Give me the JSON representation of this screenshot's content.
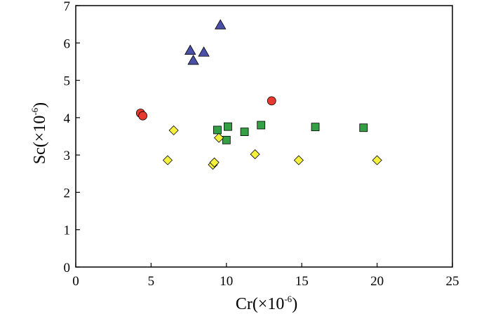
{
  "chart_data": {
    "type": "scatter",
    "title": "",
    "xlabel": {
      "base": "Cr(×10",
      "exp": "-6",
      "close": ")"
    },
    "ylabel": {
      "base": "Sc(×10",
      "exp": "-6",
      "close": ")"
    },
    "xlim": [
      0,
      25
    ],
    "ylim": [
      0,
      7
    ],
    "xticks": [
      "0",
      "5",
      "10",
      "15",
      "20",
      "25"
    ],
    "yticks": [
      "0",
      "1",
      "2",
      "3",
      "4",
      "5",
      "6",
      "7"
    ],
    "grid": false,
    "legend": "none",
    "series": [
      {
        "name": "triangles",
        "marker": "triangle",
        "color": "#4a4fa8",
        "points": [
          [
            7.6,
            5.8
          ],
          [
            7.8,
            5.53
          ],
          [
            8.5,
            5.75
          ],
          [
            9.6,
            6.48
          ]
        ]
      },
      {
        "name": "circles",
        "marker": "circle",
        "color": "#e8392f",
        "points": [
          [
            4.3,
            4.12
          ],
          [
            4.45,
            4.05
          ],
          [
            13.0,
            4.45
          ]
        ]
      },
      {
        "name": "squares",
        "marker": "square",
        "color": "#33a046",
        "points": [
          [
            9.4,
            3.67
          ],
          [
            10.0,
            3.4
          ],
          [
            10.1,
            3.76
          ],
          [
            11.2,
            3.62
          ],
          [
            12.3,
            3.8
          ],
          [
            15.9,
            3.75
          ],
          [
            19.1,
            3.73
          ]
        ]
      },
      {
        "name": "diamonds",
        "marker": "diamond",
        "color": "#f5f03c",
        "points": [
          [
            6.1,
            2.86
          ],
          [
            6.5,
            3.66
          ],
          [
            9.1,
            2.74
          ],
          [
            9.2,
            2.8
          ],
          [
            9.5,
            3.46
          ],
          [
            11.9,
            3.02
          ],
          [
            14.8,
            2.86
          ],
          [
            20.0,
            2.86
          ]
        ]
      }
    ]
  }
}
